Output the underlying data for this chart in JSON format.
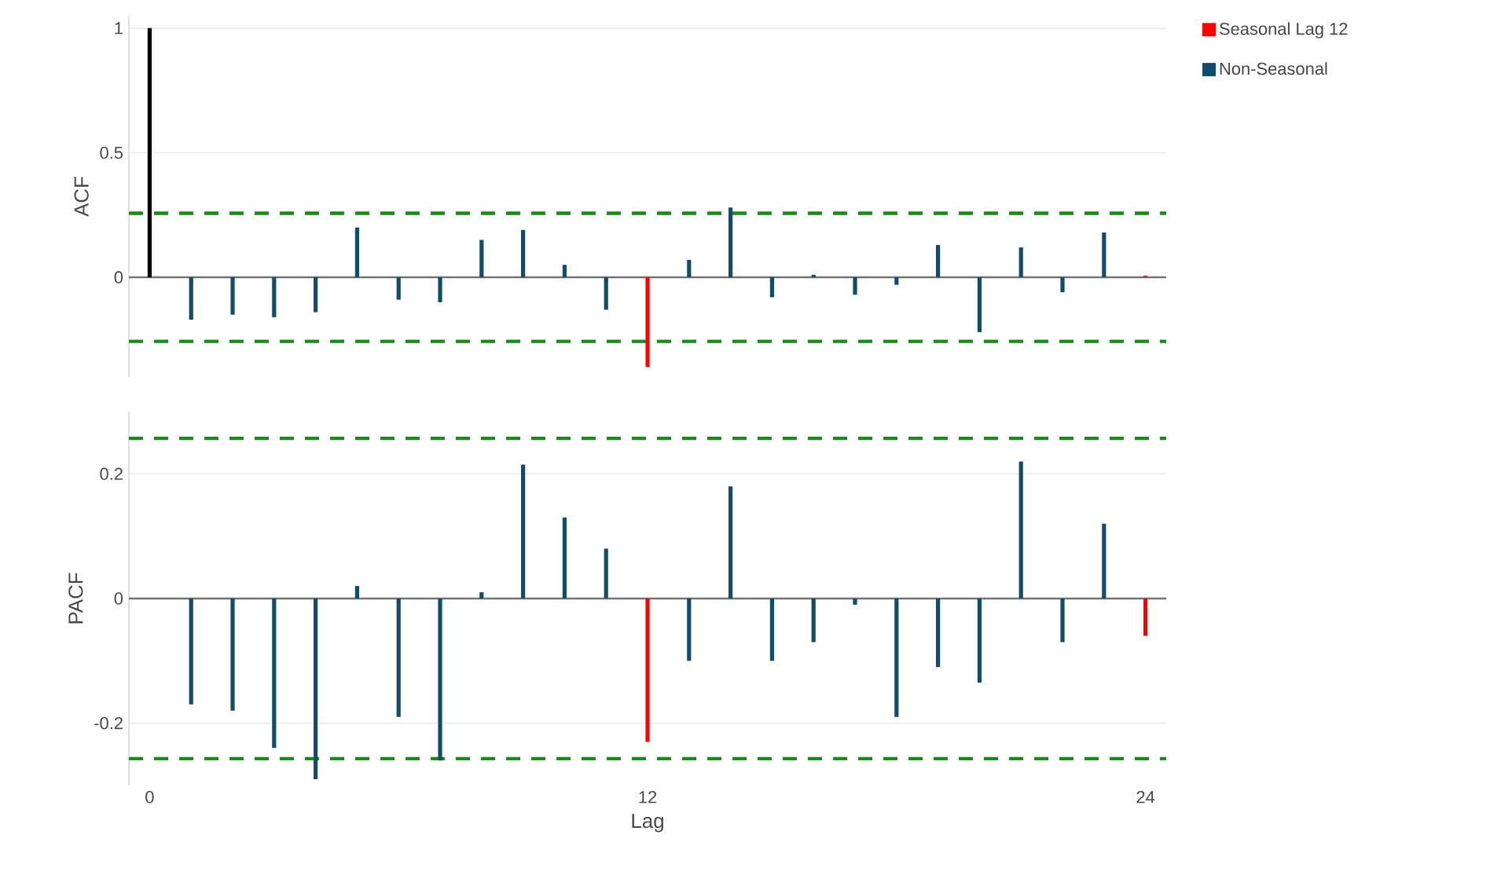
{
  "chart_data": [
    {
      "type": "bar",
      "ylabel": "ACF",
      "x": [
        0,
        1,
        2,
        3,
        4,
        5,
        6,
        7,
        8,
        9,
        10,
        11,
        12,
        13,
        14,
        15,
        16,
        17,
        18,
        19,
        20,
        21,
        22,
        23,
        24
      ],
      "xlim": [
        -0.5,
        24.5
      ],
      "xticks": [
        0,
        12,
        24
      ],
      "ylim": [
        -0.4,
        1.05
      ],
      "yticks": [
        0,
        0.5,
        1
      ],
      "grid": "y",
      "tick_labels": "y",
      "legend": "top right",
      "series": [
        {
          "color": "#000000",
          "values": [
            1,
            null,
            null,
            null,
            null,
            null,
            null,
            null,
            null,
            null,
            null,
            null,
            null,
            null,
            null,
            null,
            null,
            null,
            null,
            null,
            null,
            null,
            null,
            null,
            null
          ]
        },
        {
          "name": "Seasonal Lag 12",
          "color": "#ff0000",
          "values": [
            null,
            null,
            null,
            null,
            null,
            null,
            null,
            null,
            null,
            null,
            null,
            null,
            -0.36,
            null,
            null,
            null,
            null,
            null,
            null,
            null,
            null,
            null,
            null,
            null,
            0.006
          ]
        },
        {
          "name": "Non-Seasonal",
          "color": "#0f4d6b",
          "values": [
            null,
            -0.17,
            -0.15,
            -0.16,
            -0.14,
            0.2,
            -0.09,
            -0.1,
            0.15,
            0.19,
            0.05,
            -0.13,
            null,
            0.07,
            0.28,
            -0.08,
            0.01,
            -0.07,
            -0.03,
            0.13,
            -0.22,
            0.12,
            -0.06,
            0.18,
            null
          ]
        }
      ],
      "ref_lines": [
        {
          "axis": "y",
          "value": 0.257,
          "color": "#1a8a1a",
          "line_style": "dashed"
        },
        {
          "axis": "y",
          "value": -0.257,
          "color": "#1a8a1a",
          "line_style": "dashed"
        }
      ]
    },
    {
      "type": "bar",
      "ylabel": "PACF",
      "xlabel": "Lag",
      "x": [
        1,
        2,
        3,
        4,
        5,
        6,
        7,
        8,
        9,
        10,
        11,
        12,
        13,
        14,
        15,
        16,
        17,
        18,
        19,
        20,
        21,
        22,
        23,
        24
      ],
      "xlim": [
        -0.5,
        24.5
      ],
      "xticks": [
        0,
        12,
        24
      ],
      "ylim": [
        -0.3,
        0.3
      ],
      "yticks": [
        -0.2,
        0,
        0.2
      ],
      "grid": "y",
      "series": [
        {
          "color": "#ff0000",
          "values": [
            null,
            null,
            null,
            null,
            null,
            null,
            null,
            null,
            null,
            null,
            null,
            -0.23,
            null,
            null,
            null,
            null,
            null,
            null,
            null,
            null,
            null,
            null,
            null,
            -0.06
          ]
        },
        {
          "color": "#0f4d6b",
          "values": [
            -0.17,
            -0.18,
            -0.24,
            -0.29,
            0.02,
            -0.19,
            -0.26,
            0.01,
            0.215,
            0.13,
            0.08,
            null,
            -0.1,
            0.18,
            -0.1,
            -0.07,
            -0.01,
            -0.19,
            -0.11,
            -0.135,
            0.22,
            -0.07,
            0.12,
            null
          ]
        }
      ],
      "ref_lines": [
        {
          "axis": "y",
          "value": 0.257,
          "color": "#1a8a1a",
          "line_style": "dashed"
        },
        {
          "axis": "y",
          "value": -0.257,
          "color": "#1a8a1a",
          "line_style": "dashed"
        }
      ]
    }
  ]
}
